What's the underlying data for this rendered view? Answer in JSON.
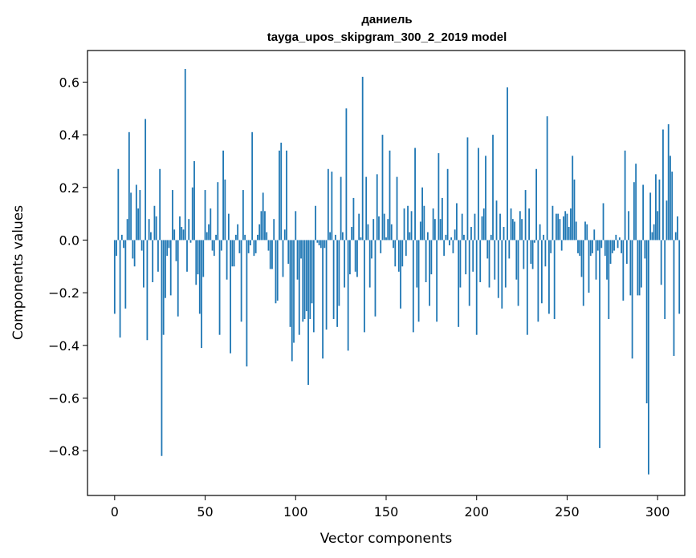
{
  "chart_data": {
    "type": "bar",
    "title_line1": "даниель",
    "title_line2": "tayga_upos_skipgram_300_2_2019 model",
    "xlabel": "Vector components",
    "ylabel": "Components values",
    "xlim": [
      -15,
      315
    ],
    "ylim": [
      -0.97,
      0.72
    ],
    "xticks": [
      0,
      50,
      100,
      150,
      200,
      250,
      300
    ],
    "xtick_labels": [
      "0",
      "50",
      "100",
      "150",
      "200",
      "250",
      "300"
    ],
    "yticks": [
      -0.8,
      -0.6,
      -0.4,
      -0.2,
      0.0,
      0.2,
      0.4,
      0.6
    ],
    "ytick_labels": [
      "−0.8",
      "−0.6",
      "−0.4",
      "−0.2",
      "0.0",
      "0.2",
      "0.4",
      "0.6"
    ],
    "bar_color": "#1f77b4",
    "grid": false,
    "values": [
      -0.28,
      -0.06,
      0.27,
      -0.37,
      0.02,
      -0.03,
      -0.26,
      0.08,
      0.41,
      0.18,
      -0.07,
      -0.1,
      0.21,
      0.12,
      0.19,
      -0.04,
      -0.18,
      0.46,
      -0.38,
      0.08,
      0.03,
      -0.16,
      0.13,
      0.09,
      -0.12,
      0.27,
      -0.82,
      -0.36,
      -0.22,
      -0.06,
      -0.03,
      -0.21,
      0.19,
      0.04,
      -0.08,
      -0.29,
      0.09,
      0.05,
      0.04,
      0.65,
      -0.12,
      0.08,
      -0.01,
      0.2,
      0.3,
      -0.17,
      -0.13,
      -0.28,
      -0.41,
      -0.14,
      0.19,
      0.03,
      0.06,
      0.12,
      -0.04,
      -0.06,
      0.02,
      0.22,
      -0.36,
      -0.04,
      0.34,
      0.23,
      -0.15,
      0.1,
      -0.43,
      -0.1,
      -0.1,
      0.02,
      0.06,
      -0.05,
      -0.31,
      0.19,
      0.02,
      -0.48,
      -0.05,
      -0.02,
      0.41,
      -0.06,
      -0.05,
      0.02,
      0.06,
      0.11,
      0.18,
      0.11,
      0.03,
      -0.04,
      -0.11,
      -0.11,
      0.08,
      -0.24,
      -0.23,
      0.34,
      0.37,
      -0.14,
      0.04,
      0.34,
      -0.09,
      -0.33,
      -0.46,
      -0.39,
      0.11,
      -0.15,
      -0.36,
      -0.07,
      -0.31,
      -0.3,
      -0.27,
      -0.55,
      -0.3,
      -0.24,
      -0.35,
      0.13,
      -0.01,
      -0.02,
      -0.03,
      -0.45,
      -0.03,
      -0.34,
      0.27,
      0.03,
      0.26,
      -0.3,
      0.02,
      -0.33,
      -0.25,
      0.24,
      0.03,
      -0.18,
      0.5,
      -0.42,
      -0.13,
      0.05,
      0.16,
      -0.12,
      -0.14,
      0.1,
      0.01,
      0.62,
      -0.35,
      0.24,
      0.06,
      -0.18,
      -0.07,
      0.08,
      -0.29,
      0.25,
      0.09,
      -0.05,
      0.4,
      0.1,
      0.01,
      0.08,
      0.34,
      0.06,
      -0.03,
      -0.1,
      0.24,
      -0.12,
      -0.26,
      -0.1,
      0.12,
      -0.06,
      0.13,
      0.03,
      0.11,
      -0.35,
      0.35,
      -0.18,
      -0.31,
      0.07,
      0.2,
      0.13,
      -0.16,
      0.03,
      -0.25,
      -0.13,
      0.12,
      0.08,
      -0.31,
      0.33,
      0.08,
      0.16,
      -0.06,
      0.02,
      0.27,
      -0.02,
      0.01,
      -0.05,
      0.04,
      0.14,
      -0.33,
      -0.18,
      0.1,
      0.02,
      -0.13,
      0.39,
      -0.25,
      0.05,
      -0.12,
      0.1,
      -0.36,
      0.35,
      -0.16,
      0.09,
      0.12,
      0.32,
      -0.07,
      -0.18,
      0.02,
      0.4,
      -0.15,
      0.15,
      -0.22,
      0.1,
      -0.26,
      0.05,
      -0.18,
      0.58,
      -0.07,
      0.12,
      0.08,
      0.07,
      -0.15,
      -0.25,
      0.11,
      0.08,
      -0.11,
      0.19,
      -0.36,
      0.12,
      -0.09,
      -0.11,
      -0.01,
      0.27,
      -0.31,
      0.06,
      -0.24,
      0.02,
      -0.1,
      0.47,
      -0.28,
      -0.05,
      0.13,
      -0.3,
      0.1,
      0.1,
      0.08,
      -0.04,
      0.09,
      0.11,
      0.1,
      0.05,
      0.12,
      0.32,
      0.23,
      0.07,
      -0.05,
      -0.06,
      -0.14,
      -0.25,
      0.07,
      0.06,
      -0.2,
      -0.06,
      -0.05,
      0.04,
      -0.15,
      -0.04,
      -0.79,
      -0.03,
      0.14,
      -0.06,
      -0.15,
      -0.3,
      -0.09,
      -0.05,
      -0.04,
      0.02,
      -0.03,
      0.01,
      -0.05,
      -0.23,
      0.34,
      -0.09,
      0.11,
      -0.21,
      -0.45,
      0.22,
      0.29,
      -0.21,
      -0.21,
      -0.18,
      0.21,
      -0.07,
      -0.62,
      -0.89,
      0.18,
      0.03,
      0.06,
      0.25,
      0.11,
      0.23,
      -0.17,
      0.42,
      -0.3,
      0.15,
      0.44,
      0.32,
      0.26,
      -0.44,
      0.03,
      0.09,
      -0.28
    ]
  }
}
